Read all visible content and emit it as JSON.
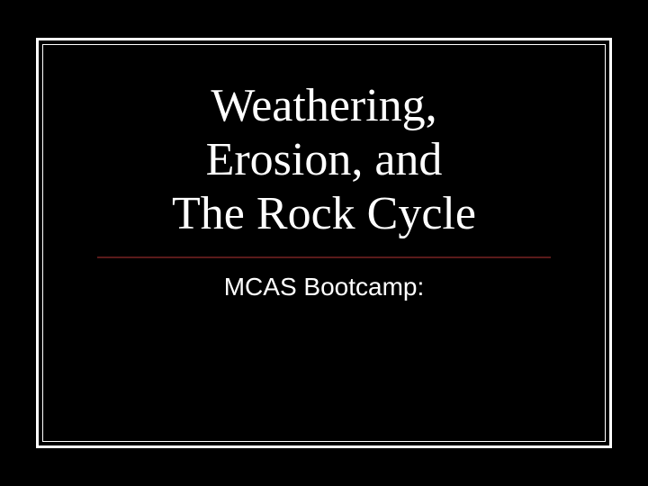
{
  "slide": {
    "title_line1": "Weathering,",
    "title_line2": "Erosion, and",
    "title_line3": "The Rock Cycle",
    "subtitle": "MCAS Bootcamp:",
    "background_color": "#000000",
    "border_color": "#ffffff",
    "divider_color": "#5a1a1a",
    "text_color": "#ffffff",
    "title_font": "Times New Roman",
    "title_fontsize": 52,
    "subtitle_font": "Arial",
    "subtitle_fontsize": 28
  }
}
